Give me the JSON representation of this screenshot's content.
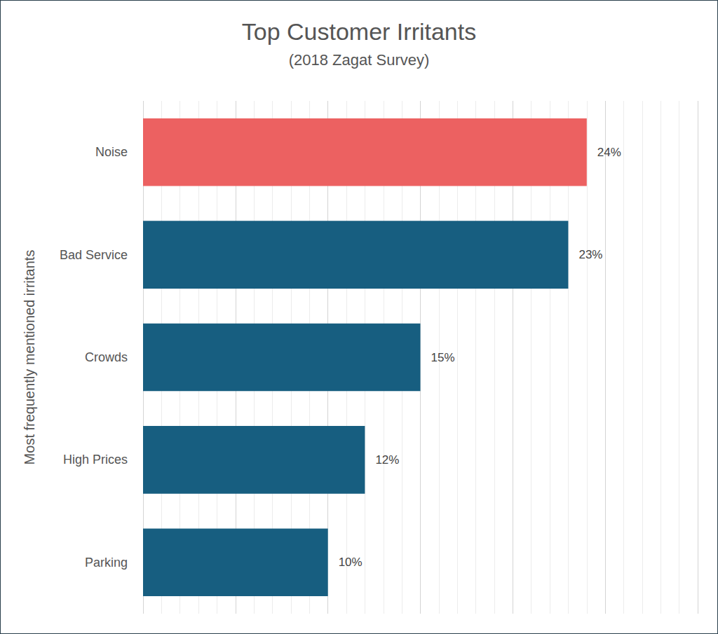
{
  "chart_data": {
    "type": "bar",
    "title": "Top Customer Irritants",
    "subtitle": "(2018 Zagat Survey)",
    "ylabel": "Most frequently mentioned irritants",
    "categories": [
      "Noise",
      "Bad Service",
      "Crowds",
      "High Prices",
      "Parking"
    ],
    "values": [
      24,
      23,
      15,
      12,
      10
    ],
    "value_labels": [
      "24%",
      "23%",
      "15%",
      "12%",
      "10%"
    ],
    "colors": [
      "#ec6161",
      "#175e80",
      "#175e80",
      "#175e80",
      "#175e80"
    ],
    "orientation": "horizontal",
    "xlim": [
      0,
      30
    ],
    "xticks": [
      0,
      5,
      10,
      15,
      20,
      25,
      30
    ],
    "grid": true,
    "data_labels": true,
    "tick_labels": "y"
  }
}
